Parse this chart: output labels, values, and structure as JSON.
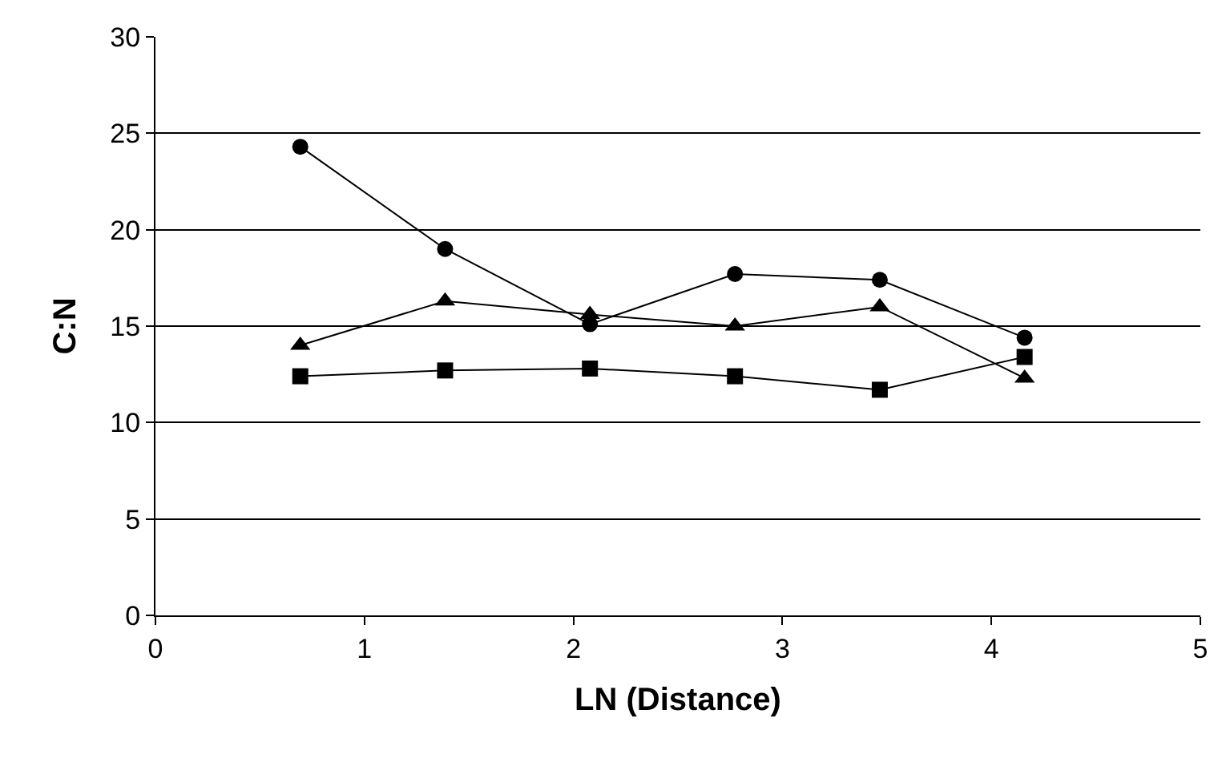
{
  "chart_data": {
    "type": "line",
    "xlabel": "LN (Distance)",
    "ylabel": "C:N",
    "x": [
      0.693,
      1.386,
      2.079,
      2.773,
      3.466,
      4.159
    ],
    "series": [
      {
        "color": "#000000",
        "marker": "circle",
        "values": [
          24.3,
          19.0,
          15.1,
          17.7,
          17.4,
          14.4
        ]
      },
      {
        "color": "#000000",
        "marker": "triangle",
        "values": [
          14.0,
          16.3,
          15.6,
          15.0,
          16.0,
          12.3
        ]
      },
      {
        "color": "#000000",
        "marker": "square",
        "values": [
          12.4,
          12.7,
          12.8,
          12.4,
          11.7,
          13.4
        ]
      }
    ],
    "xlim": [
      0,
      5
    ],
    "xticks": [
      0,
      1,
      2,
      3,
      4,
      5
    ],
    "ylim": [
      0,
      30
    ],
    "yticks": [
      0,
      5,
      10,
      15,
      20,
      25,
      30
    ],
    "grid": "y",
    "line_style": "solid"
  }
}
